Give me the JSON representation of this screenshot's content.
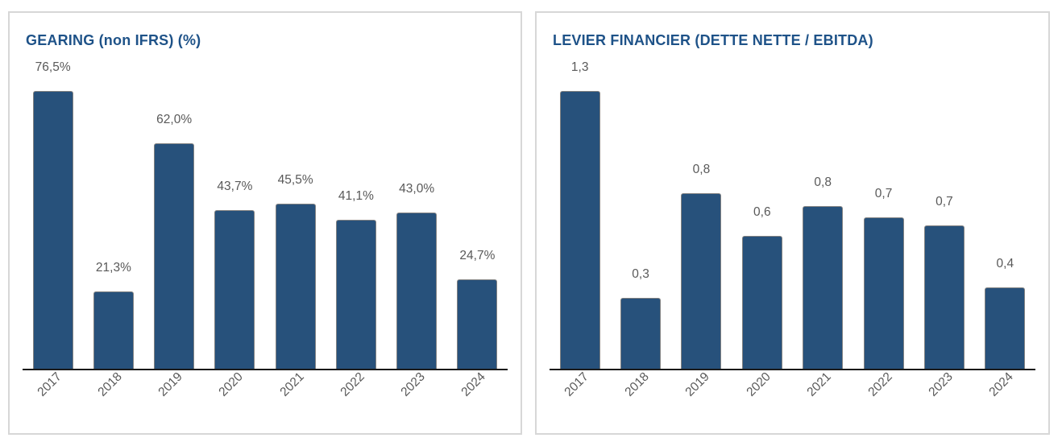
{
  "figure": {
    "background": "#ffffff"
  },
  "colors": {
    "bar_fill": "#27517B",
    "bar_border": "#828282",
    "title_text": "#1E5288",
    "value_label": "#595959",
    "axis_tick_label": "#595959",
    "axis_line": "#1a1a1a",
    "panel_border": "#d7d7d7",
    "panel_background": "#ffffff"
  },
  "chart_data": [
    {
      "type": "bar",
      "title": "GEARING (non IFRS) (%)",
      "categories": [
        "2017",
        "2018",
        "2019",
        "2020",
        "2021",
        "2022",
        "2023",
        "2024"
      ],
      "values": [
        76.5,
        21.3,
        62.0,
        43.7,
        45.5,
        41.1,
        43.0,
        24.7
      ],
      "value_labels": [
        "76,5%",
        "21,3%",
        "62,0%",
        "43,7%",
        "45,5%",
        "41,1%",
        "43,0%",
        "24,7%"
      ],
      "unit": "percent",
      "xlabel": "",
      "ylabel": "",
      "ylim": [
        0,
        80
      ],
      "grid": false,
      "legend": "none",
      "y_axis_visible": false,
      "value_label_position": "above-bar",
      "x_tick_rotation_deg": 45
    },
    {
      "type": "bar",
      "title": "LEVIER FINANCIER (DETTE NETTE / EBITDA)",
      "categories": [
        "2017",
        "2018",
        "2019",
        "2020",
        "2021",
        "2022",
        "2023",
        "2024"
      ],
      "values": [
        1.3,
        0.3,
        0.8,
        0.6,
        0.8,
        0.7,
        0.7,
        0.4
      ],
      "values_precise": [
        1.3,
        0.33,
        0.82,
        0.62,
        0.76,
        0.71,
        0.67,
        0.38
      ],
      "value_labels": [
        "1,3",
        "0,3",
        "0,8",
        "0,6",
        "0,8",
        "0,7",
        "0,7",
        "0,4"
      ],
      "unit": "ratio",
      "xlabel": "",
      "ylabel": "",
      "ylim": [
        0,
        1.4
      ],
      "grid": false,
      "legend": "none",
      "y_axis_visible": false,
      "value_label_position": "above-bar",
      "x_tick_rotation_deg": 45
    }
  ]
}
